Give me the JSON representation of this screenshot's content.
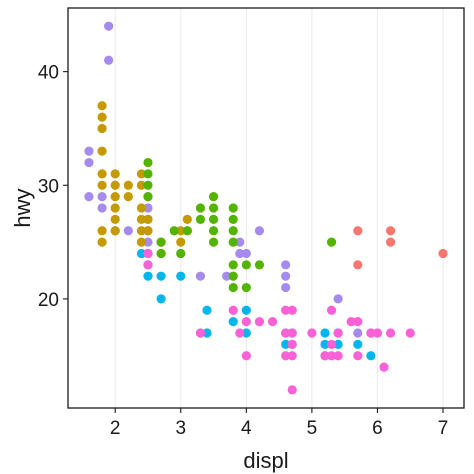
{
  "chart_data": {
    "type": "scatter",
    "title": "",
    "xlabel": "displ",
    "ylabel": "hwy",
    "xlim": [
      1.28,
      7.32
    ],
    "ylim": [
      10.4,
      45.6
    ],
    "x_ticks": [
      2,
      3,
      4,
      5,
      6,
      7
    ],
    "y_ticks": [
      20,
      30,
      40
    ],
    "x_tick_labels": [
      "2",
      "3",
      "4",
      "5",
      "6",
      "7"
    ],
    "y_tick_labels": [
      "20",
      "30",
      "40"
    ],
    "grid": "vertical",
    "legend": "none",
    "series": [
      {
        "color": "#a68bef",
        "points": [
          [
            1.9,
            44
          ],
          [
            1.9,
            41
          ],
          [
            1.6,
            33
          ],
          [
            1.6,
            32
          ],
          [
            1.6,
            29
          ],
          [
            1.8,
            29
          ],
          [
            1.8,
            28
          ],
          [
            2.0,
            26
          ],
          [
            2.2,
            26
          ],
          [
            2.5,
            29
          ],
          [
            2.5,
            28
          ],
          [
            2.5,
            27
          ],
          [
            2.5,
            26
          ],
          [
            2.5,
            25
          ],
          [
            2.5,
            24
          ],
          [
            2.7,
            24
          ],
          [
            3.0,
            24
          ],
          [
            3.3,
            22
          ],
          [
            3.7,
            22
          ],
          [
            3.9,
            24
          ],
          [
            3.9,
            25
          ],
          [
            4.0,
            24
          ],
          [
            4.2,
            26
          ],
          [
            4.6,
            23
          ],
          [
            4.6,
            22
          ],
          [
            4.6,
            21
          ],
          [
            5.4,
            20
          ],
          [
            5.7,
            17
          ],
          [
            5.9,
            17
          ]
        ]
      },
      {
        "color": "#c49a00",
        "points": [
          [
            1.8,
            37
          ],
          [
            1.8,
            36
          ],
          [
            1.8,
            35
          ],
          [
            1.8,
            33
          ],
          [
            1.8,
            31
          ],
          [
            1.8,
            30
          ],
          [
            1.8,
            26
          ],
          [
            1.8,
            25
          ],
          [
            2.0,
            31
          ],
          [
            2.0,
            30
          ],
          [
            2.0,
            29
          ],
          [
            2.0,
            28
          ],
          [
            2.0,
            27
          ],
          [
            2.0,
            26
          ],
          [
            2.2,
            30
          ],
          [
            2.2,
            29
          ],
          [
            2.4,
            31
          ],
          [
            2.4,
            30
          ],
          [
            2.4,
            28
          ],
          [
            2.4,
            27
          ],
          [
            2.4,
            26
          ],
          [
            2.4,
            25
          ],
          [
            2.5,
            27
          ],
          [
            2.5,
            26
          ],
          [
            2.7,
            25
          ],
          [
            2.7,
            24
          ],
          [
            3.0,
            26
          ],
          [
            3.0,
            25
          ],
          [
            3.1,
            27
          ],
          [
            3.1,
            26
          ]
        ]
      },
      {
        "color": "#53b400",
        "points": [
          [
            2.5,
            32
          ],
          [
            2.5,
            31
          ],
          [
            2.5,
            30
          ],
          [
            2.5,
            29
          ],
          [
            2.7,
            25
          ],
          [
            2.7,
            24
          ],
          [
            2.9,
            26
          ],
          [
            3.0,
            24
          ],
          [
            3.1,
            26
          ],
          [
            3.3,
            28
          ],
          [
            3.3,
            27
          ],
          [
            3.5,
            29
          ],
          [
            3.5,
            28
          ],
          [
            3.5,
            27
          ],
          [
            3.5,
            26
          ],
          [
            3.5,
            25
          ],
          [
            3.8,
            28
          ],
          [
            3.8,
            27
          ],
          [
            3.8,
            26
          ],
          [
            3.8,
            25
          ],
          [
            3.8,
            23
          ],
          [
            3.8,
            22
          ],
          [
            3.8,
            21
          ],
          [
            4.0,
            23
          ],
          [
            4.0,
            21
          ],
          [
            4.2,
            23
          ],
          [
            5.3,
            25
          ]
        ]
      },
      {
        "color": "#00b6eb",
        "points": [
          [
            2.4,
            24
          ],
          [
            2.5,
            24
          ],
          [
            2.5,
            23
          ],
          [
            2.5,
            22
          ],
          [
            2.7,
            22
          ],
          [
            2.7,
            20
          ],
          [
            3.0,
            22
          ],
          [
            3.4,
            19
          ],
          [
            3.4,
            17
          ],
          [
            3.8,
            18
          ],
          [
            4.0,
            19
          ],
          [
            4.0,
            17
          ],
          [
            4.6,
            16
          ],
          [
            4.6,
            17
          ],
          [
            4.7,
            16
          ],
          [
            4.7,
            17
          ],
          [
            5.2,
            17
          ],
          [
            5.2,
            16
          ],
          [
            5.2,
            15
          ],
          [
            5.4,
            17
          ],
          [
            5.4,
            16
          ],
          [
            5.7,
            16
          ],
          [
            5.9,
            15
          ]
        ]
      },
      {
        "color": "#fb61d7",
        "points": [
          [
            2.5,
            24
          ],
          [
            2.5,
            23
          ],
          [
            3.3,
            17
          ],
          [
            3.8,
            19
          ],
          [
            3.9,
            17
          ],
          [
            4.0,
            18
          ],
          [
            4.0,
            15
          ],
          [
            4.2,
            18
          ],
          [
            4.4,
            18
          ],
          [
            4.6,
            19
          ],
          [
            4.6,
            17
          ],
          [
            4.6,
            15
          ],
          [
            4.7,
            19
          ],
          [
            4.7,
            17
          ],
          [
            4.7,
            16
          ],
          [
            4.7,
            15
          ],
          [
            4.7,
            12
          ],
          [
            5.0,
            17
          ],
          [
            5.2,
            15
          ],
          [
            5.3,
            19
          ],
          [
            5.3,
            16
          ],
          [
            5.3,
            15
          ],
          [
            5.4,
            17
          ],
          [
            5.4,
            15
          ],
          [
            5.6,
            18
          ],
          [
            5.7,
            18
          ],
          [
            5.7,
            15
          ],
          [
            5.9,
            17
          ],
          [
            6.0,
            17
          ],
          [
            6.1,
            14
          ],
          [
            6.2,
            17
          ],
          [
            6.5,
            17
          ]
        ]
      },
      {
        "color": "#f8766d",
        "points": [
          [
            5.7,
            26
          ],
          [
            5.7,
            23
          ],
          [
            6.2,
            26
          ],
          [
            6.2,
            25
          ],
          [
            7.0,
            24
          ]
        ]
      }
    ]
  }
}
